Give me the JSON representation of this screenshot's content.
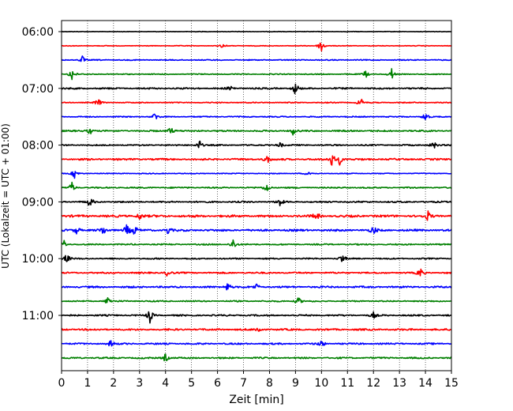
{
  "chart_data": {
    "type": "line",
    "xlabel": "Zeit  [min]",
    "ylabel": "UTC (Lokalzeit = UTC + 01:00)",
    "xlim": [
      0,
      15
    ],
    "x_ticks": [
      "0",
      "1",
      "2",
      "3",
      "4",
      "5",
      "6",
      "7",
      "8",
      "9",
      "10",
      "11",
      "12",
      "13",
      "14",
      "15"
    ],
    "grid": "vertical dotted lines at each minute",
    "y_ticks": [
      {
        "label": "06:00",
        "row": 0
      },
      {
        "label": "07:00",
        "row": 4
      },
      {
        "label": "08:00",
        "row": 8
      },
      {
        "label": "09:00",
        "row": 12
      },
      {
        "label": "10:00",
        "row": 16
      },
      {
        "label": "11:00",
        "row": 20
      }
    ],
    "trace_colors": [
      "#000000",
      "#ff0000",
      "#0000ff",
      "#008000"
    ],
    "traces": [
      {
        "start": "06:00",
        "color": "#000000",
        "noise": 0.25,
        "bursts": []
      },
      {
        "start": "06:15",
        "color": "#ff0000",
        "noise": 0.3,
        "bursts": [
          [
            6.2,
            3
          ],
          [
            10.0,
            11
          ]
        ]
      },
      {
        "start": "06:30",
        "color": "#0000ff",
        "noise": 0.45,
        "bursts": [
          [
            0.8,
            5
          ]
        ]
      },
      {
        "start": "06:45",
        "color": "#008000",
        "noise": 0.45,
        "bursts": [
          [
            0.4,
            9
          ],
          [
            11.7,
            5
          ],
          [
            12.7,
            7
          ]
        ]
      },
      {
        "start": "07:00",
        "color": "#000000",
        "noise": 0.7,
        "bursts": [
          [
            6.5,
            4
          ],
          [
            9.0,
            9
          ]
        ]
      },
      {
        "start": "07:15",
        "color": "#ff0000",
        "noise": 0.45,
        "bursts": [
          [
            1.4,
            6
          ],
          [
            11.5,
            7
          ]
        ]
      },
      {
        "start": "07:30",
        "color": "#0000ff",
        "noise": 0.5,
        "bursts": [
          [
            3.6,
            6
          ],
          [
            14.0,
            7
          ]
        ]
      },
      {
        "start": "07:45",
        "color": "#008000",
        "noise": 0.7,
        "bursts": [
          [
            1.1,
            5
          ],
          [
            4.2,
            6
          ],
          [
            8.9,
            5
          ]
        ]
      },
      {
        "start": "08:00",
        "color": "#000000",
        "noise": 0.6,
        "bursts": [
          [
            5.3,
            7
          ],
          [
            8.4,
            4
          ],
          [
            14.3,
            7
          ]
        ]
      },
      {
        "start": "08:15",
        "color": "#ff0000",
        "noise": 0.8,
        "bursts": [
          [
            7.9,
            7
          ],
          [
            10.4,
            9
          ],
          [
            10.7,
            7
          ]
        ]
      },
      {
        "start": "08:30",
        "color": "#0000ff",
        "noise": 0.4,
        "bursts": [
          [
            0.5,
            6
          ],
          [
            9.5,
            4
          ]
        ]
      },
      {
        "start": "08:45",
        "color": "#008000",
        "noise": 0.6,
        "bursts": [
          [
            0.4,
            7
          ],
          [
            7.9,
            7
          ]
        ]
      },
      {
        "start": "09:00",
        "color": "#000000",
        "noise": 0.7,
        "bursts": [
          [
            1.1,
            8
          ],
          [
            8.4,
            6
          ]
        ]
      },
      {
        "start": "09:15",
        "color": "#ff0000",
        "noise": 1.0,
        "bursts": [
          [
            3.0,
            5
          ],
          [
            9.8,
            6
          ],
          [
            14.1,
            6
          ]
        ]
      },
      {
        "start": "09:30",
        "color": "#0000ff",
        "noise": 0.9,
        "bursts": [
          [
            0.6,
            6
          ],
          [
            1.6,
            6
          ],
          [
            2.5,
            8
          ],
          [
            2.8,
            7
          ],
          [
            4.1,
            5
          ],
          [
            12.0,
            6
          ]
        ]
      },
      {
        "start": "09:45",
        "color": "#008000",
        "noise": 0.6,
        "bursts": [
          [
            0.1,
            5
          ],
          [
            6.6,
            8
          ]
        ]
      },
      {
        "start": "10:00",
        "color": "#000000",
        "noise": 0.6,
        "bursts": [
          [
            0.2,
            7
          ],
          [
            10.8,
            7
          ]
        ]
      },
      {
        "start": "10:15",
        "color": "#ff0000",
        "noise": 0.7,
        "bursts": [
          [
            4.1,
            7
          ],
          [
            13.8,
            7
          ]
        ]
      },
      {
        "start": "10:30",
        "color": "#0000ff",
        "noise": 0.8,
        "bursts": [
          [
            6.4,
            7
          ],
          [
            7.5,
            4
          ]
        ]
      },
      {
        "start": "10:45",
        "color": "#008000",
        "noise": 0.6,
        "bursts": [
          [
            1.8,
            7
          ],
          [
            9.1,
            6
          ]
        ]
      },
      {
        "start": "11:00",
        "color": "#000000",
        "noise": 0.7,
        "bursts": [
          [
            3.4,
            9
          ],
          [
            12.0,
            4
          ]
        ]
      },
      {
        "start": "11:15",
        "color": "#ff0000",
        "noise": 0.8,
        "bursts": [
          [
            7.6,
            5
          ]
        ]
      },
      {
        "start": "11:30",
        "color": "#0000ff",
        "noise": 0.7,
        "bursts": [
          [
            1.9,
            5
          ],
          [
            10.0,
            5
          ]
        ]
      },
      {
        "start": "11:45",
        "color": "#008000",
        "noise": 0.7,
        "bursts": [
          [
            4.0,
            6
          ]
        ]
      }
    ]
  }
}
